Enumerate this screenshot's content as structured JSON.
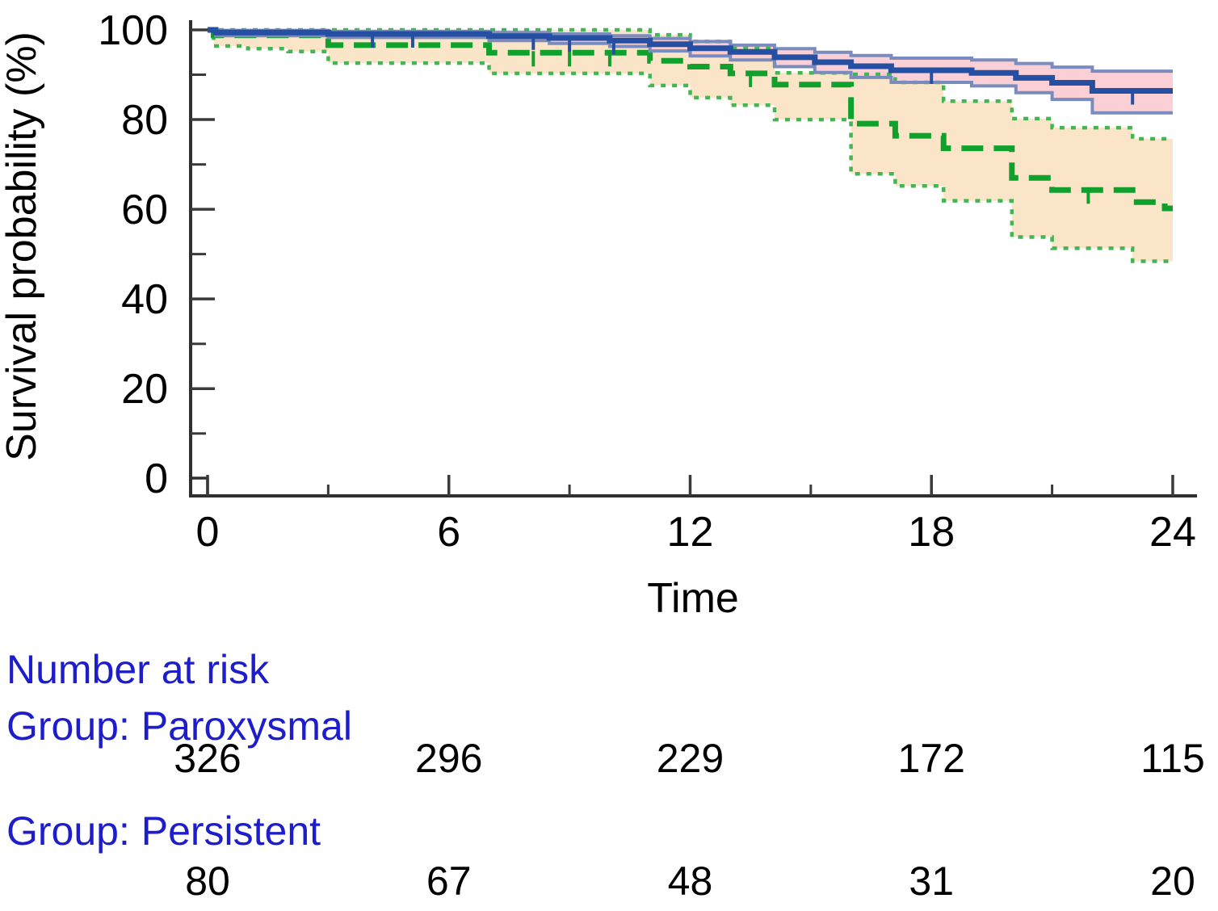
{
  "chart_data": {
    "type": "line",
    "subtype": "kaplan-meier-step-with-confidence-bands",
    "title": "",
    "xlabel": "Time",
    "ylabel": "Survival probability (%)",
    "xlim": [
      0,
      24
    ],
    "ylim": [
      0,
      100
    ],
    "x_ticks_major": [
      0,
      6,
      12,
      18,
      24
    ],
    "x_ticks_minor": [
      3,
      9,
      15,
      21
    ],
    "y_ticks_major": [
      0,
      20,
      40,
      60,
      80,
      100
    ],
    "y_ticks_minor": [
      10,
      30,
      50,
      70,
      90
    ],
    "grid": false,
    "legend": "none",
    "series": [
      {
        "name": "Persistent",
        "line_style": "dashed",
        "line_color": "#10a12d",
        "band_fill_color": "#fbe5c8",
        "band_edge_color": "#45b554",
        "band_edge_style": "dotted",
        "band_opacity": 1.0,
        "estimate": [
          [
            0,
            100
          ],
          [
            0.15,
            98.8
          ],
          [
            3,
            96.6
          ],
          [
            7,
            94.9
          ],
          [
            11,
            93.1
          ],
          [
            12,
            91.8
          ],
          [
            13,
            90.3
          ],
          [
            14.1,
            87.8
          ],
          [
            16,
            79.1
          ],
          [
            17.1,
            76.4
          ],
          [
            18.3,
            73.6
          ],
          [
            20,
            67.0
          ],
          [
            21,
            64.3
          ],
          [
            23,
            61.6
          ],
          [
            23.8,
            60.2
          ],
          [
            24,
            60.2
          ]
        ],
        "upper": [
          [
            0,
            100
          ],
          [
            11,
            98.9
          ],
          [
            12,
            97.4
          ],
          [
            13,
            95.9
          ],
          [
            14.1,
            90.4
          ],
          [
            16,
            90.1
          ],
          [
            17.1,
            88.3
          ],
          [
            18.3,
            84.1
          ],
          [
            20,
            80.2
          ],
          [
            21,
            78.2
          ],
          [
            23,
            75.7
          ],
          [
            24,
            75.7
          ]
        ],
        "lower": [
          [
            0,
            100
          ],
          [
            0.15,
            96.4
          ],
          [
            1,
            95.8
          ],
          [
            2,
            95.2
          ],
          [
            3,
            92.6
          ],
          [
            7,
            90.3
          ],
          [
            11,
            87.6
          ],
          [
            12,
            84.9
          ],
          [
            13,
            83.2
          ],
          [
            14.1,
            80.0
          ],
          [
            16,
            67.9
          ],
          [
            17.1,
            65.2
          ],
          [
            18.3,
            61.9
          ],
          [
            20,
            53.8
          ],
          [
            21,
            51.3
          ],
          [
            23,
            48.4
          ],
          [
            24,
            48.4
          ]
        ],
        "censor_times": [
          8.1,
          9.0,
          10.0,
          13.5,
          21.9
        ]
      },
      {
        "name": "Paroxysmal",
        "line_style": "solid",
        "line_color": "#244fa2",
        "band_fill_color": "#f9cbd1",
        "band_edge_color": "#7a8cbe",
        "band_edge_style": "solid",
        "band_opacity": 0.9,
        "estimate": [
          [
            0,
            100
          ],
          [
            0.2,
            99.4
          ],
          [
            3,
            99.1
          ],
          [
            7,
            98.6
          ],
          [
            8.5,
            98.2
          ],
          [
            10,
            97.6
          ],
          [
            11,
            96.8
          ],
          [
            12,
            95.9
          ],
          [
            13,
            95.1
          ],
          [
            14.1,
            93.9
          ],
          [
            15.1,
            92.8
          ],
          [
            16,
            91.9
          ],
          [
            17,
            91.0
          ],
          [
            19,
            90.4
          ],
          [
            20.1,
            89.3
          ],
          [
            21,
            88.2
          ],
          [
            22,
            86.4
          ],
          [
            24,
            86.4
          ]
        ],
        "upper": [
          [
            0,
            100
          ],
          [
            0.2,
            99.9
          ],
          [
            3,
            99.7
          ],
          [
            7,
            99.4
          ],
          [
            8.5,
            99.1
          ],
          [
            10,
            98.7
          ],
          [
            11,
            98.1
          ],
          [
            12,
            97.4
          ],
          [
            13,
            96.6
          ],
          [
            14.1,
            95.8
          ],
          [
            15.1,
            95.0
          ],
          [
            16,
            94.3
          ],
          [
            17,
            93.7
          ],
          [
            19,
            93.3
          ],
          [
            20.1,
            92.5
          ],
          [
            21,
            91.7
          ],
          [
            22,
            90.8
          ],
          [
            24,
            90.8
          ]
        ],
        "lower": [
          [
            0,
            100
          ],
          [
            0.2,
            98.7
          ],
          [
            3,
            98.3
          ],
          [
            7,
            97.6
          ],
          [
            8.5,
            97.0
          ],
          [
            10,
            96.3
          ],
          [
            11,
            95.3
          ],
          [
            12,
            94.2
          ],
          [
            13,
            93.3
          ],
          [
            14.1,
            91.8
          ],
          [
            15.1,
            90.5
          ],
          [
            16,
            89.4
          ],
          [
            17,
            88.3
          ],
          [
            19,
            87.5
          ],
          [
            20.1,
            86.0
          ],
          [
            21,
            84.5
          ],
          [
            22,
            81.5
          ],
          [
            24,
            81.5
          ]
        ],
        "censor_times": [
          4.1,
          5.1,
          8.1,
          9.0,
          10.1,
          18.0,
          23.0
        ]
      }
    ],
    "risk_table": {
      "title": "Number at risk",
      "time_points": [
        0,
        6,
        12,
        18,
        24
      ],
      "groups": [
        {
          "label": "Group: Paroxysmal",
          "counts": [
            "326",
            "296",
            "229",
            "172",
            "115"
          ]
        },
        {
          "label": "Group: Persistent",
          "counts": [
            "80",
            "67",
            "48",
            "31",
            "20"
          ]
        }
      ]
    },
    "colors": {
      "axis": "#2f2f2f",
      "tick": "#3a3a3a",
      "risk_text_blue": "#1d1dcb",
      "paroxysmal_line": "#244fa2",
      "paroxysmal_band": "#f9cbd1",
      "persistent_line": "#10a12d",
      "persistent_band": "#fbe5c8"
    }
  }
}
